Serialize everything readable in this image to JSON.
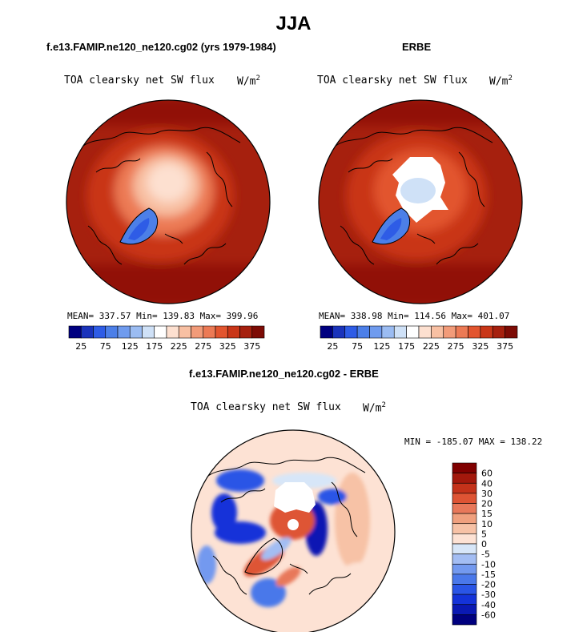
{
  "title": "JJA",
  "colors": {
    "abs_scale": [
      "#000080",
      "#1a33bb",
      "#2e5ce6",
      "#4c7fe8",
      "#6f9bee",
      "#9bbcf2",
      "#cfe1f7",
      "#ffffff",
      "#fde0d0",
      "#f8c0a3",
      "#f29b79",
      "#ec7a55",
      "#e2552f",
      "#c93618",
      "#a6200e",
      "#7d0b05"
    ],
    "diff_scale": [
      "#00007f",
      "#0a19b3",
      "#1433d9",
      "#2a55e6",
      "#4a78ea",
      "#7399ef",
      "#a3bdf3",
      "#d7e6f8",
      "#fde2d4",
      "#f7c2a6",
      "#f0a07e",
      "#e8785a",
      "#de5434",
      "#c4321a",
      "#a3180c",
      "#800000"
    ],
    "coast": "#000000"
  },
  "panels": [
    {
      "subtitle": "f.e13.FAMIP.ne120_ne120.cg02 (yrs 1979-1984)",
      "variable": "TOA clearsky net SW flux",
      "units": "W/m",
      "units_sup": "2",
      "stats": "MEAN= 337.57  Min= 139.83  Max= 399.96",
      "colorbar_labels": [
        "25",
        "75",
        "125",
        "175",
        "225",
        "275",
        "325",
        "375"
      ]
    },
    {
      "subtitle": "ERBE",
      "variable": "TOA clearsky net SW flux",
      "units": "W/m",
      "units_sup": "2",
      "stats": "MEAN= 338.98  Min= 114.56  Max= 401.07",
      "colorbar_labels": [
        "25",
        "75",
        "125",
        "175",
        "225",
        "275",
        "325",
        "375"
      ]
    },
    {
      "subtitle": "f.e13.FAMIP.ne120_ne120.cg02 - ERBE",
      "variable": "TOA clearsky net SW flux",
      "units": "W/m",
      "units_sup": "2",
      "stats": "MIN = -185.07 MAX = 138.22",
      "colorbar_labels": [
        "60",
        "40",
        "30",
        "20",
        "15",
        "10",
        "5",
        "0",
        "-5",
        "-10",
        "-15",
        "-20",
        "-30",
        "-40",
        "-60"
      ]
    }
  ],
  "chart_data": [
    {
      "type": "heatmap",
      "projection": "north-polar-stereographic",
      "title": "f.e13.FAMIP.ne120_ne120.cg02 (yrs 1979-1984)",
      "variable": "TOA clearsky net SW flux",
      "units": "W/m2",
      "mean": 337.57,
      "min": 139.83,
      "max": 399.96,
      "colorbar_levels": [
        25,
        50,
        75,
        100,
        125,
        150,
        175,
        200,
        225,
        250,
        275,
        300,
        325,
        350,
        375
      ],
      "colorbar_labels": [
        25,
        75,
        125,
        175,
        225,
        275,
        325,
        375
      ]
    },
    {
      "type": "heatmap",
      "projection": "north-polar-stereographic",
      "title": "ERBE",
      "variable": "TOA clearsky net SW flux",
      "units": "W/m2",
      "mean": 338.98,
      "min": 114.56,
      "max": 401.07,
      "colorbar_levels": [
        25,
        50,
        75,
        100,
        125,
        150,
        175,
        200,
        225,
        250,
        275,
        300,
        325,
        350,
        375
      ],
      "colorbar_labels": [
        25,
        75,
        125,
        175,
        225,
        275,
        325,
        375
      ]
    },
    {
      "type": "heatmap",
      "projection": "north-polar-stereographic",
      "title": "f.e13.FAMIP.ne120_ne120.cg02 - ERBE",
      "variable": "TOA clearsky net SW flux",
      "units": "W/m2",
      "min": -185.07,
      "max": 138.22,
      "colorbar_levels": [
        -60,
        -40,
        -30,
        -20,
        -15,
        -10,
        -5,
        0,
        5,
        10,
        15,
        20,
        30,
        40,
        60
      ],
      "legend_position": "right"
    }
  ]
}
